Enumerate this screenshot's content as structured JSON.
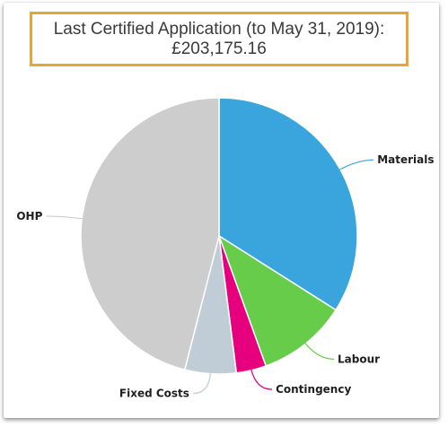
{
  "colors": {
    "title_border": "#e8a33b",
    "materials": "#3aa4dd",
    "labour": "#66cc4a",
    "contingency": "#e6007e",
    "fixed_costs": "#c0cdd6",
    "ohp": "#cdcdcd"
  },
  "title": {
    "line1": "Last Certified Application (to May 31, 2019):",
    "line2": "£203,175.16"
  },
  "chart_data": {
    "type": "pie",
    "title": "Last Certified Application (to May 31, 2019): £203,175.16",
    "legend": "none",
    "slices": [
      {
        "label": "Materials",
        "value": 34.0,
        "color": "#3aa4dd"
      },
      {
        "label": "Labour",
        "value": 10.5,
        "color": "#66cc4a"
      },
      {
        "label": "Contingency",
        "value": 3.5,
        "color": "#e6007e"
      },
      {
        "label": "Fixed Costs",
        "value": 6.0,
        "color": "#c0cdd6"
      },
      {
        "label": "OHP",
        "value": 46.0,
        "color": "#cdcdcd"
      }
    ]
  }
}
